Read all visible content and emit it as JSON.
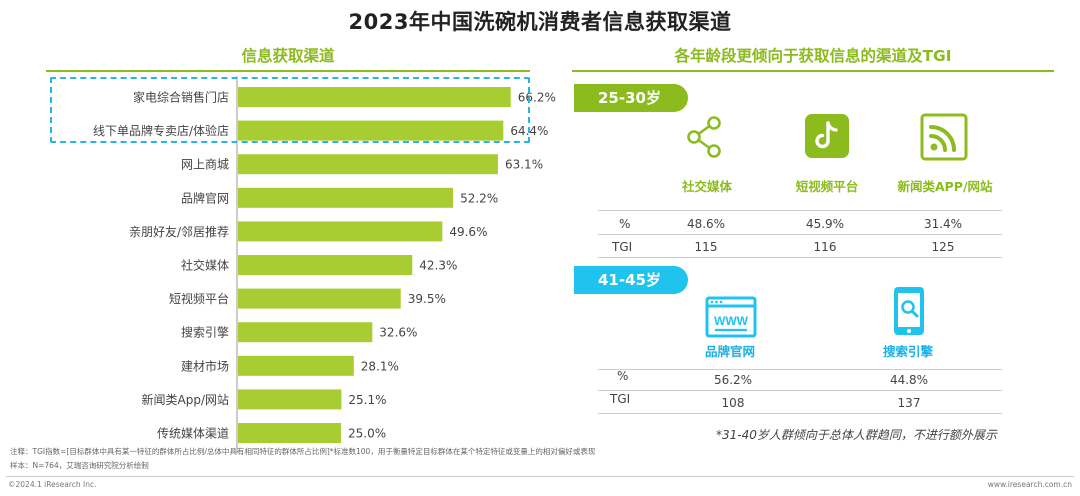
{
  "title": "2023年中国洗碗机消费者信息获取渠道",
  "left_header": "信息获取渠道",
  "right_header": "各年龄段更倾向于获取信息的渠道及TGI",
  "chart_data": {
    "type": "bar",
    "orientation": "horizontal",
    "title": "信息获取渠道",
    "categories": [
      "家电综合销售门店",
      "线下单品牌专卖店/体验店",
      "网上商城",
      "品牌官网",
      "亲朋好友/邻居推荐",
      "社交媒体",
      "短视频平台",
      "搜索引擎",
      "建材市场",
      "新闻类App/网站",
      "传统媒体渠道"
    ],
    "values": [
      66.2,
      64.4,
      63.1,
      52.2,
      49.6,
      42.3,
      39.5,
      32.6,
      28.1,
      25.1,
      25.0
    ],
    "labels": [
      "66.2%",
      "64.4%",
      "63.1%",
      "52.2%",
      "49.6%",
      "42.3%",
      "39.5%",
      "32.6%",
      "28.1%",
      "25.1%",
      "25.0%"
    ],
    "unit": "%",
    "xlim": [
      0,
      100
    ],
    "color": "#a8cd32",
    "highlighted": [
      "家电综合销售门店",
      "线下单品牌专卖店/体验店"
    ]
  },
  "group_a": {
    "badge": "25-30岁",
    "channels": [
      {
        "name": "社交媒体",
        "icon": "share-nodes-icon",
        "pct": "48.6%",
        "tgi": "115"
      },
      {
        "name": "短视频平台",
        "icon": "tiktok-icon",
        "pct": "45.9%",
        "tgi": "116"
      },
      {
        "name": "新闻类APP/网站",
        "icon": "rss-icon",
        "pct": "31.4%",
        "tgi": "125"
      }
    ]
  },
  "group_b": {
    "badge": "41-45岁",
    "channels": [
      {
        "name": "品牌官网",
        "icon": "www-browser-icon",
        "pct": "56.2%",
        "tgi": "108"
      },
      {
        "name": "搜索引擎",
        "icon": "search-phone-icon",
        "pct": "44.8%",
        "tgi": "137"
      }
    ]
  },
  "row_labels": {
    "pct": "%",
    "tgi": "TGI"
  },
  "note_right": "*31-40岁人群倾向于总体人群趋同，不进行额外展示",
  "footer": {
    "note": "注释：TGI指数=[目标群体中具有某一特征的群体所占比例/总体中具有相同特征的群体所占比例]*标准数100，用于衡量特定目标群体在某个特定特征或变量上的相对偏好或表现",
    "sample": "样本：N=764，艾瑞咨询研究院分析绘制",
    "copyright": "©2024.1 iResearch Inc.",
    "site": "www.iresearch.com.cn"
  },
  "colors": {
    "green": "#8cbb1e",
    "bar": "#a8cd32",
    "blue": "#1fc3ee",
    "dash": "#2ab4e6"
  }
}
